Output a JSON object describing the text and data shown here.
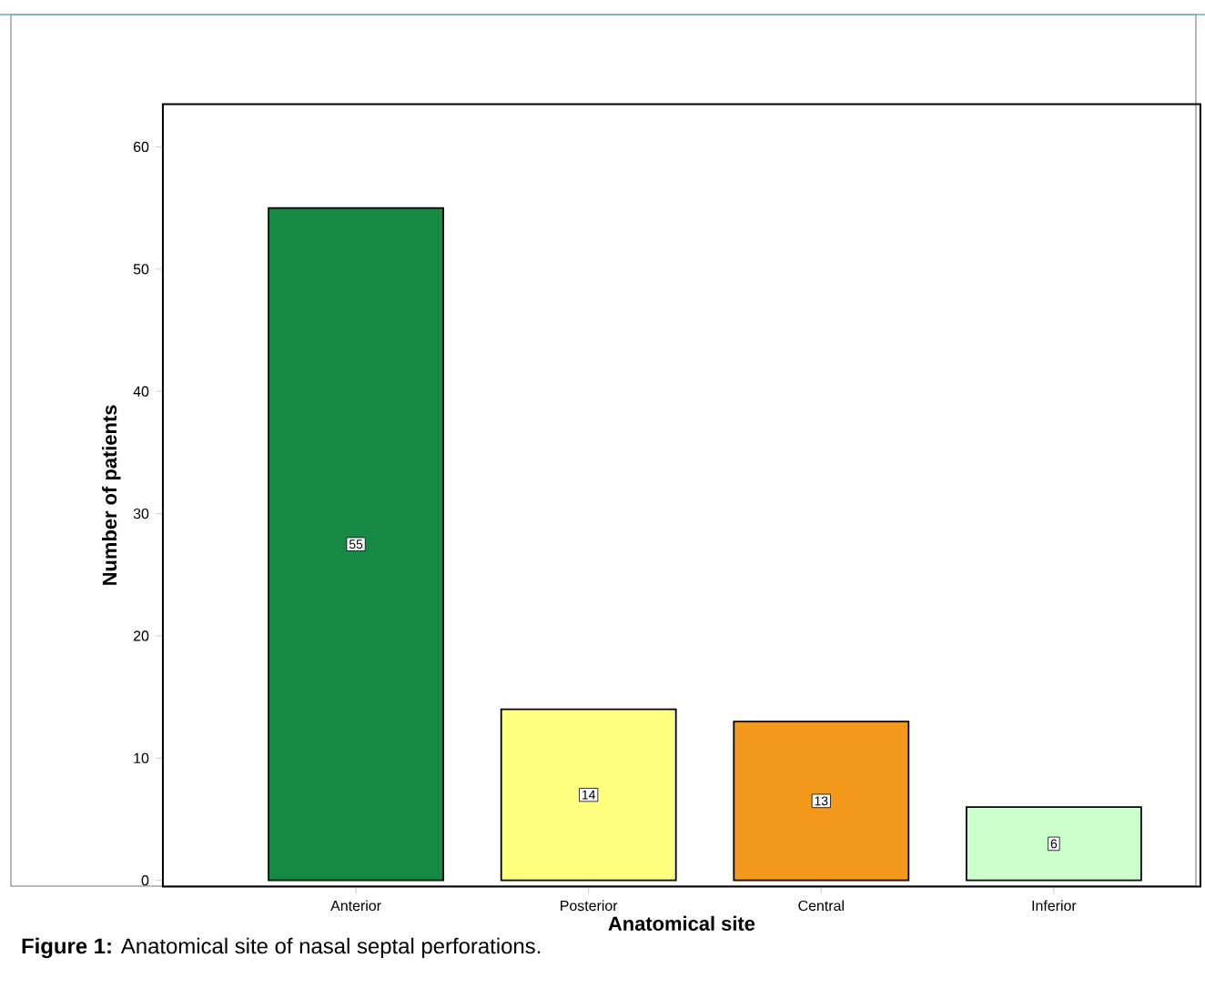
{
  "chart_data": {
    "type": "bar",
    "xlabel": "Anatomical site",
    "ylabel": "Number of patients",
    "categories": [
      "Anterior",
      "Posterior",
      "Central",
      "Inferior"
    ],
    "values": [
      55,
      14,
      13,
      6
    ],
    "colors": [
      "#168a45",
      "#ffff80",
      "#f39a1d",
      "#ccffcc"
    ],
    "ylim": [
      -0.5,
      63.5
    ],
    "yticks": [
      0,
      10,
      20,
      30,
      40,
      50,
      60
    ],
    "data_labels": true,
    "annotations": [
      "**Figure 1:** Anatomical site of nasal septal perforations."
    ]
  }
}
